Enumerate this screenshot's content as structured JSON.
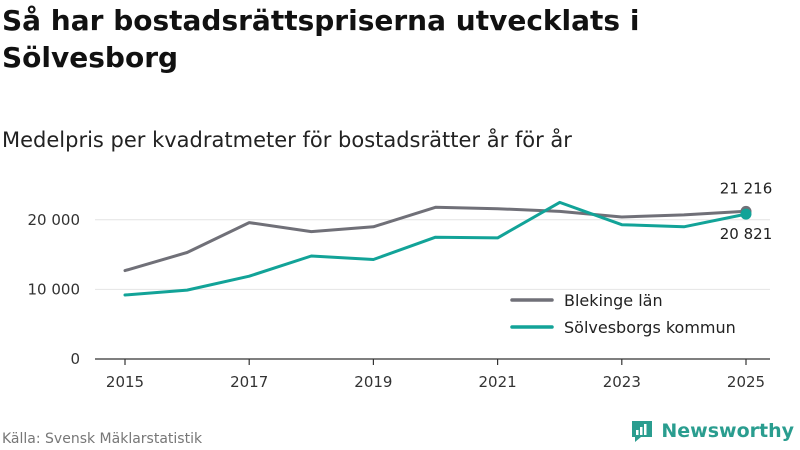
{
  "title": "Så har bostadsrättspriserna utvecklats i Sölvesborg",
  "subtitle": "Medelpris per kvadratmeter för bostadsrätter år för år",
  "source": "Källa: Svensk Mäklarstatistik",
  "brand": "Newsworthy",
  "colors": {
    "blekinge": "#707078",
    "solvesborg": "#12a398",
    "axis": "#333333",
    "grid": "#e4e4e4",
    "brand": "#2a9d8f"
  },
  "chart_data": {
    "type": "line",
    "x": [
      2015,
      2016,
      2017,
      2018,
      2019,
      2020,
      2021,
      2022,
      2023,
      2024,
      2025
    ],
    "x_ticks": [
      2015,
      2017,
      2019,
      2021,
      2023,
      2025
    ],
    "x_tick_labels": [
      "2015",
      "2017",
      "2019",
      "2021",
      "2023",
      "2025"
    ],
    "y_ticks": [
      0,
      10000,
      20000
    ],
    "y_tick_labels": [
      "0",
      "10 000",
      "20 000"
    ],
    "ylim": [
      0,
      25000
    ],
    "xlabel": "",
    "ylabel": "",
    "legend_position": "bottom-right",
    "series": [
      {
        "name": "Blekinge län",
        "key": "blekinge",
        "values": [
          12700,
          15300,
          19600,
          18300,
          19000,
          21800,
          21600,
          21200,
          20400,
          20700,
          21216
        ]
      },
      {
        "name": "Sölvesborgs kommun",
        "key": "solvesborg",
        "values": [
          9200,
          9900,
          11900,
          14800,
          14300,
          17500,
          17400,
          22500,
          19300,
          19000,
          20821
        ]
      }
    ],
    "end_labels": [
      {
        "series": "blekinge",
        "text": "21 216"
      },
      {
        "series": "solvesborg",
        "text": "20 821"
      }
    ]
  }
}
